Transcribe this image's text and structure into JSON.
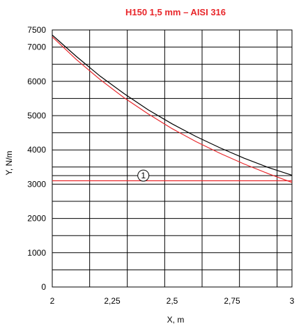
{
  "chart_data": {
    "type": "line",
    "title": "H150 1,5 mm – AISI 316",
    "title_color": "#e8262a",
    "xlabel": "X, m",
    "ylabel": "Y, N/m",
    "xlim": [
      2,
      3
    ],
    "ylim": [
      0,
      7500
    ],
    "x_ticks": [
      {
        "value": 2,
        "label": "2"
      },
      {
        "value": 2.25,
        "label": "2,25"
      },
      {
        "value": 2.5,
        "label": "2,5"
      },
      {
        "value": 2.75,
        "label": "2,75"
      },
      {
        "value": 3,
        "label": "3"
      }
    ],
    "y_ticks": [
      {
        "value": 0,
        "label": "0"
      },
      {
        "value": 1000,
        "label": "1000"
      },
      {
        "value": 2000,
        "label": "2000"
      },
      {
        "value": 3000,
        "label": "3000"
      },
      {
        "value": 4000,
        "label": "4000"
      },
      {
        "value": 5000,
        "label": "5000"
      },
      {
        "value": 6000,
        "label": "6000"
      },
      {
        "value": 7000,
        "label": "7000"
      },
      {
        "value": 7500,
        "label": "7500"
      }
    ],
    "x_grid": [
      2,
      2.156,
      2.313,
      2.469,
      2.625,
      2.781,
      2.938,
      3
    ],
    "y_grid": [
      0,
      500,
      1000,
      1500,
      2000,
      2500,
      3000,
      3250,
      3500,
      4000,
      4500,
      5000,
      5500,
      6000,
      6500,
      7000,
      7500
    ],
    "grid": true,
    "series": [
      {
        "color": "#000000",
        "x": [
          2,
          2.1,
          2.2,
          2.3,
          2.4,
          2.5,
          2.6,
          2.7,
          2.8,
          2.9,
          3
        ],
        "y": [
          7350,
          6730,
          6150,
          5640,
          5170,
          4760,
          4390,
          4060,
          3760,
          3490,
          3260
        ]
      },
      {
        "color": "#e8262a",
        "x": [
          2,
          2.1,
          2.2,
          2.3,
          2.4,
          2.5,
          2.6,
          2.7,
          2.8,
          2.9,
          3
        ],
        "y": [
          7300,
          6640,
          6050,
          5520,
          5050,
          4620,
          4240,
          3900,
          3590,
          3310,
          3050
        ]
      },
      {
        "color": "#e8262a",
        "x": [
          2,
          3
        ],
        "y": [
          3100,
          3100
        ]
      }
    ],
    "annotations": [
      {
        "text": "1",
        "x": 2.38,
        "y": 3250
      }
    ]
  }
}
